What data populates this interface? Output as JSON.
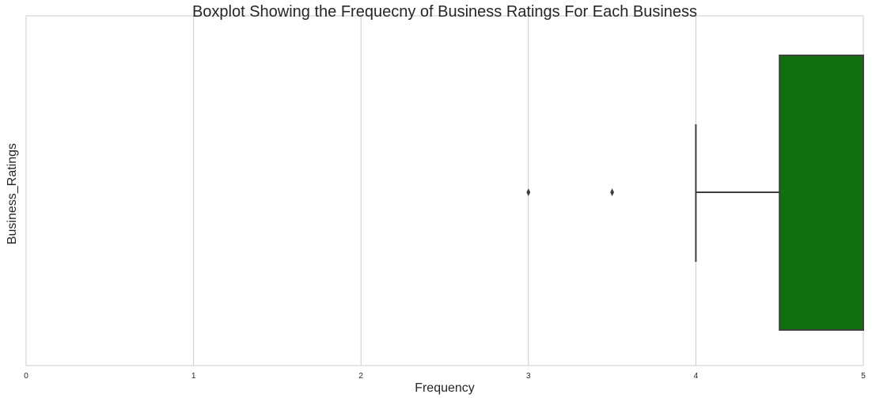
{
  "chart_data": {
    "type": "boxplot",
    "orientation": "horizontal",
    "title": "Boxplot Showing the Frequecny of Business Ratings For Each Business",
    "xlabel": "Frequency",
    "ylabel": "Business_Ratings",
    "xlim": [
      0,
      5
    ],
    "xticks": [
      "0",
      "1",
      "2",
      "3",
      "4",
      "5"
    ],
    "grid": true,
    "box": {
      "whisker_low": 4.0,
      "q1": 4.5,
      "median": 5.0,
      "q3": 5.0,
      "whisker_high": 5.0,
      "outliers": [
        3.0,
        3.5
      ],
      "color": "#107010"
    }
  }
}
